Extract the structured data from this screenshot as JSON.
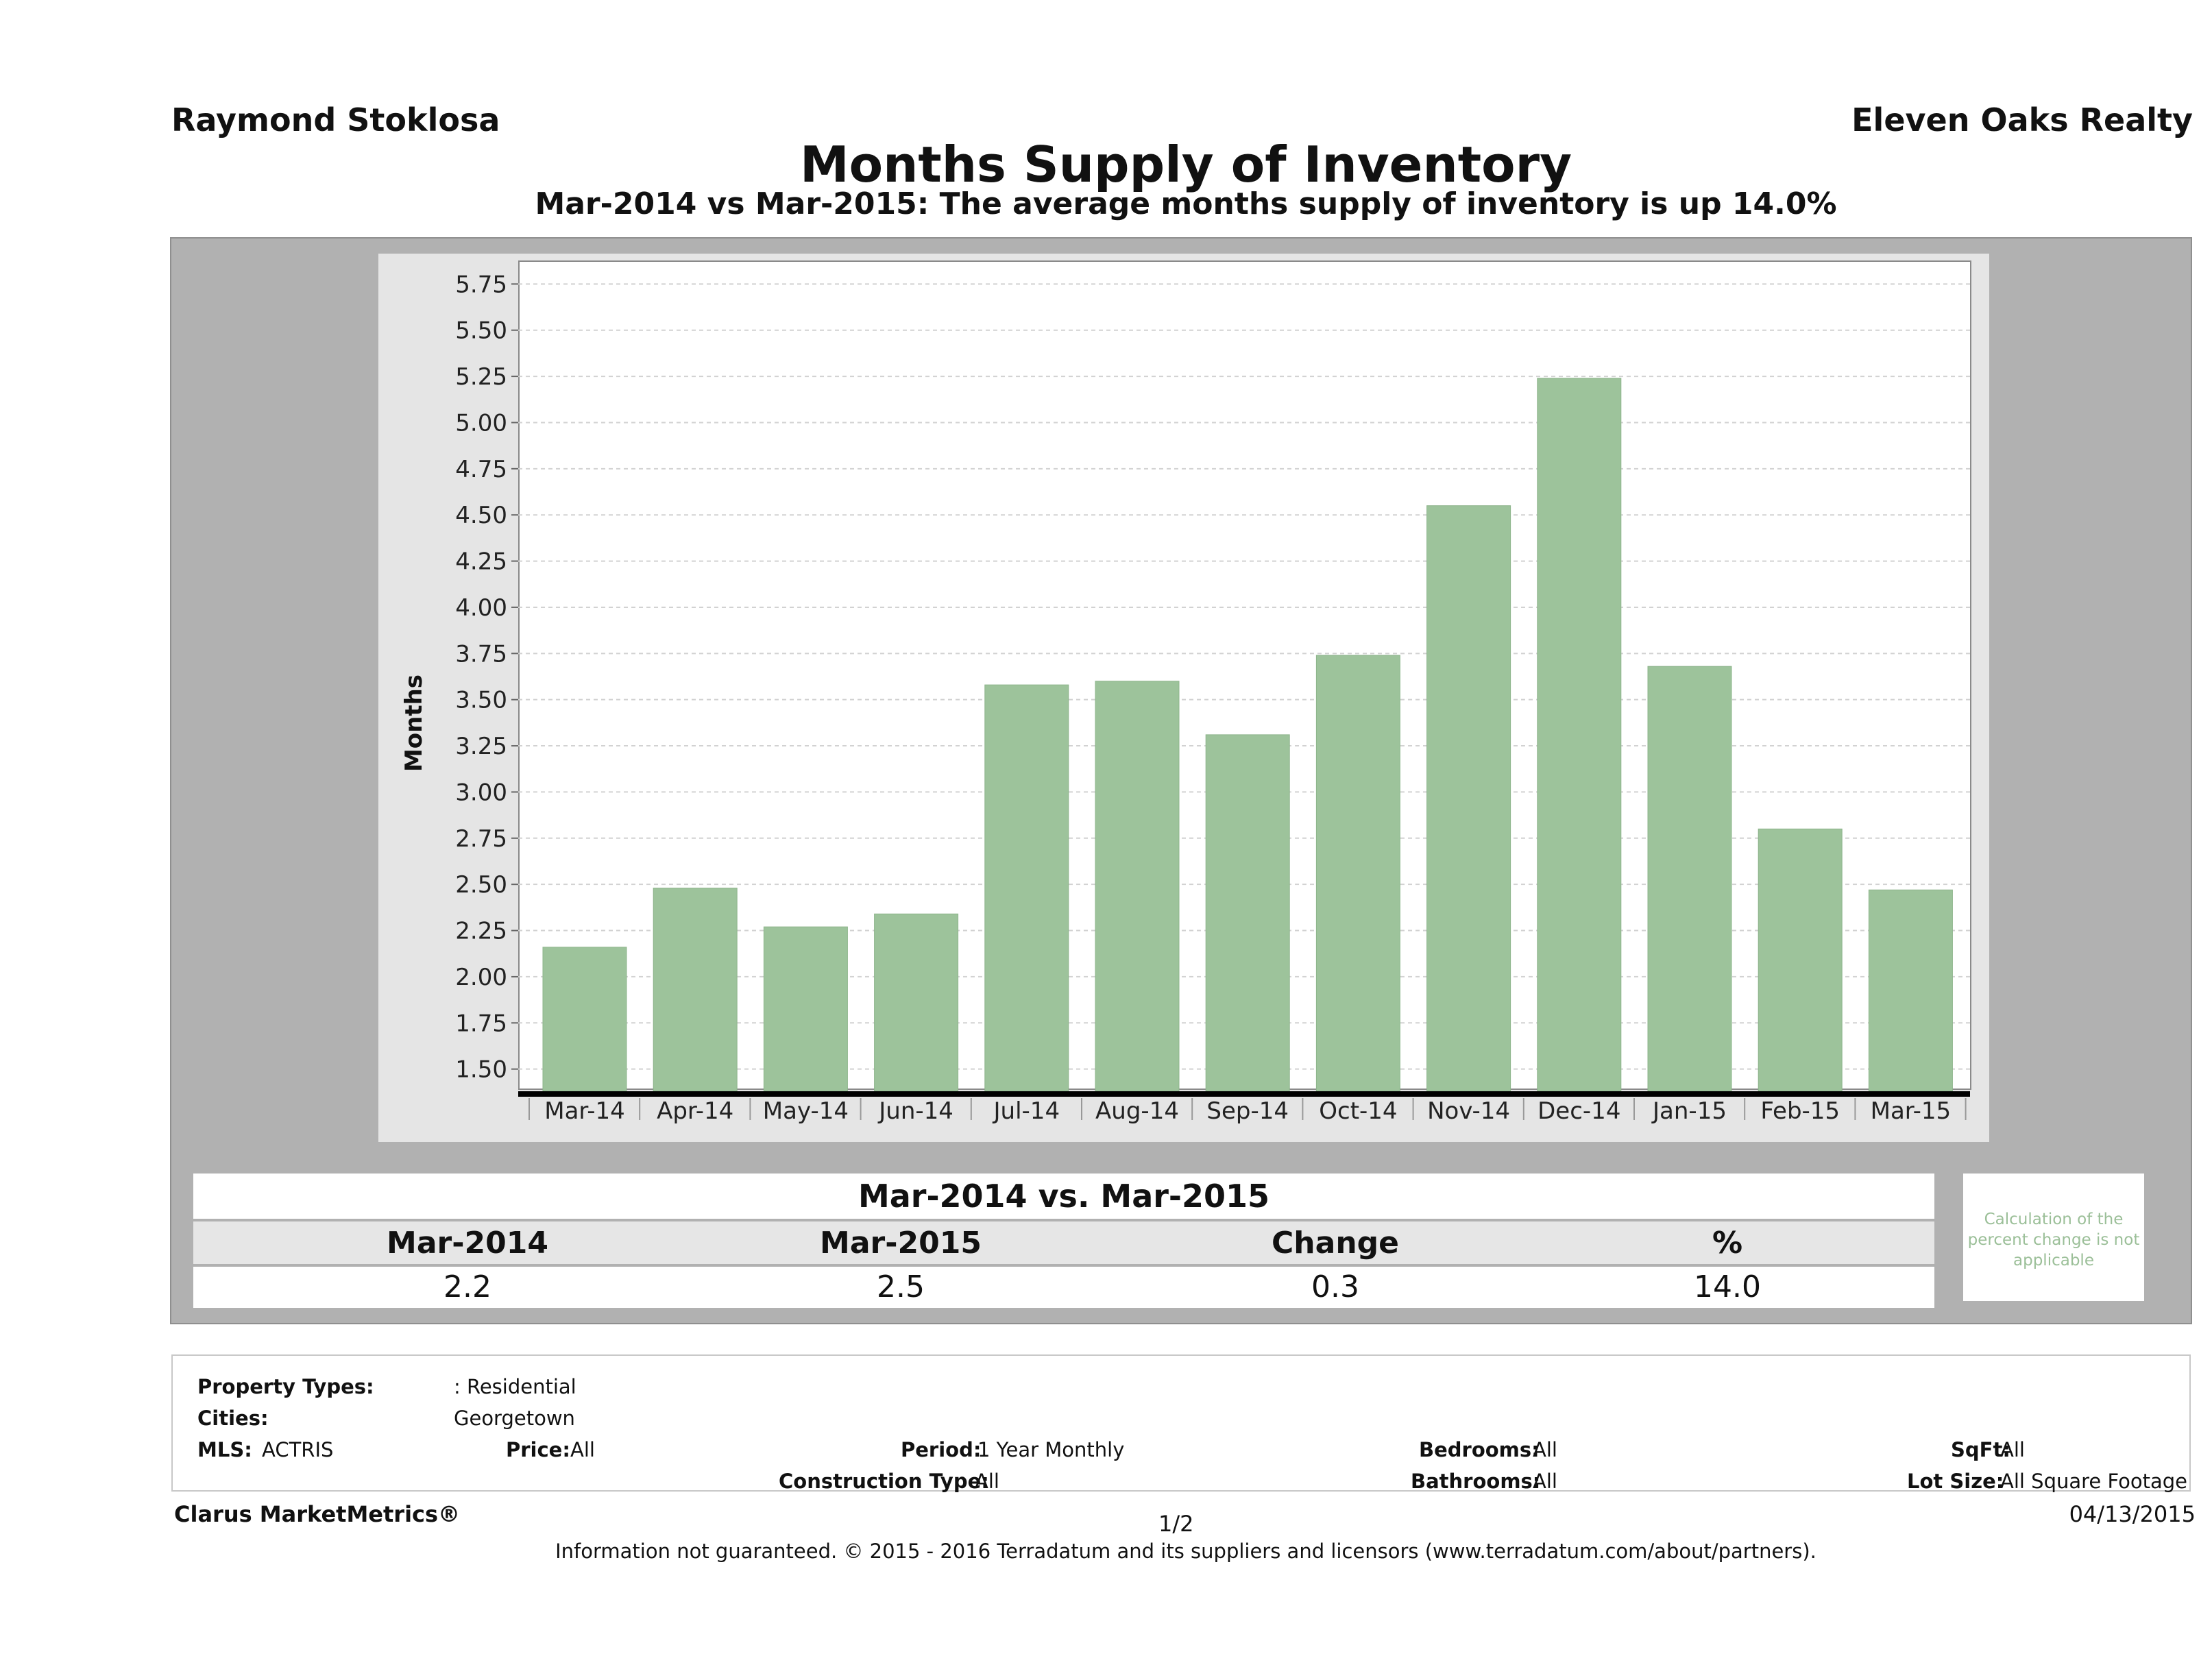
{
  "header": {
    "agent": "Raymond Stoklosa",
    "office": "Eleven Oaks Realty",
    "title": "Months Supply of Inventory",
    "subtitle": "Mar-2014 vs Mar-2015: The average months supply of inventory is up 14.0%"
  },
  "chart_data": {
    "type": "bar",
    "ylabel": "Months",
    "xlabel": "",
    "categories": [
      "Mar-14",
      "Apr-14",
      "May-14",
      "Jun-14",
      "Jul-14",
      "Aug-14",
      "Sep-14",
      "Oct-14",
      "Nov-14",
      "Dec-14",
      "Jan-15",
      "Feb-15",
      "Mar-15"
    ],
    "values": [
      2.16,
      2.48,
      2.27,
      2.34,
      3.58,
      3.6,
      3.31,
      3.74,
      4.55,
      5.24,
      3.68,
      2.8,
      2.47
    ],
    "ylim": [
      1.38,
      5.87
    ],
    "yticks": [
      "1.50",
      "1.75",
      "2.00",
      "2.25",
      "2.50",
      "2.75",
      "3.00",
      "3.25",
      "3.50",
      "3.75",
      "4.00",
      "4.25",
      "4.50",
      "4.75",
      "5.00",
      "5.25",
      "5.50",
      "5.75"
    ],
    "grid": true,
    "bar_color": "#9dc39b"
  },
  "comparison": {
    "title": "Mar-2014 vs. Mar-2015",
    "headers": [
      "Mar-2014",
      "Mar-2015",
      "Change",
      "%"
    ],
    "values": [
      "2.2",
      "2.5",
      "0.3",
      "14.0"
    ],
    "note": "Calculation of the percent change is not applicable"
  },
  "filters": {
    "property_types_label": "Property Types:",
    "property_types_value": ": Residential",
    "cities_label": "Cities:",
    "cities_value": "Georgetown",
    "mls_label": "MLS:",
    "mls_value": "ACTRIS",
    "price_label": "Price:",
    "price_value": "All",
    "period_label": "Period:",
    "period_value": "1 Year Monthly",
    "construction_label": "Construction Type:",
    "construction_value": "All",
    "bedrooms_label": "Bedrooms:",
    "bedrooms_value": "All",
    "bathrooms_label": "Bathrooms:",
    "bathrooms_value": "All",
    "sqft_label": "SqFt:",
    "sqft_value": "All",
    "lotsize_label": "Lot Size:",
    "lotsize_value": "All Square Footage"
  },
  "footer": {
    "brand": "Clarus MarketMetrics®",
    "page": "1/2",
    "date": "04/13/2015",
    "disclaimer": "Information not guaranteed. © 2015 - 2016 Terradatum and its suppliers and licensors (www.terradatum.com/about/partners)."
  }
}
